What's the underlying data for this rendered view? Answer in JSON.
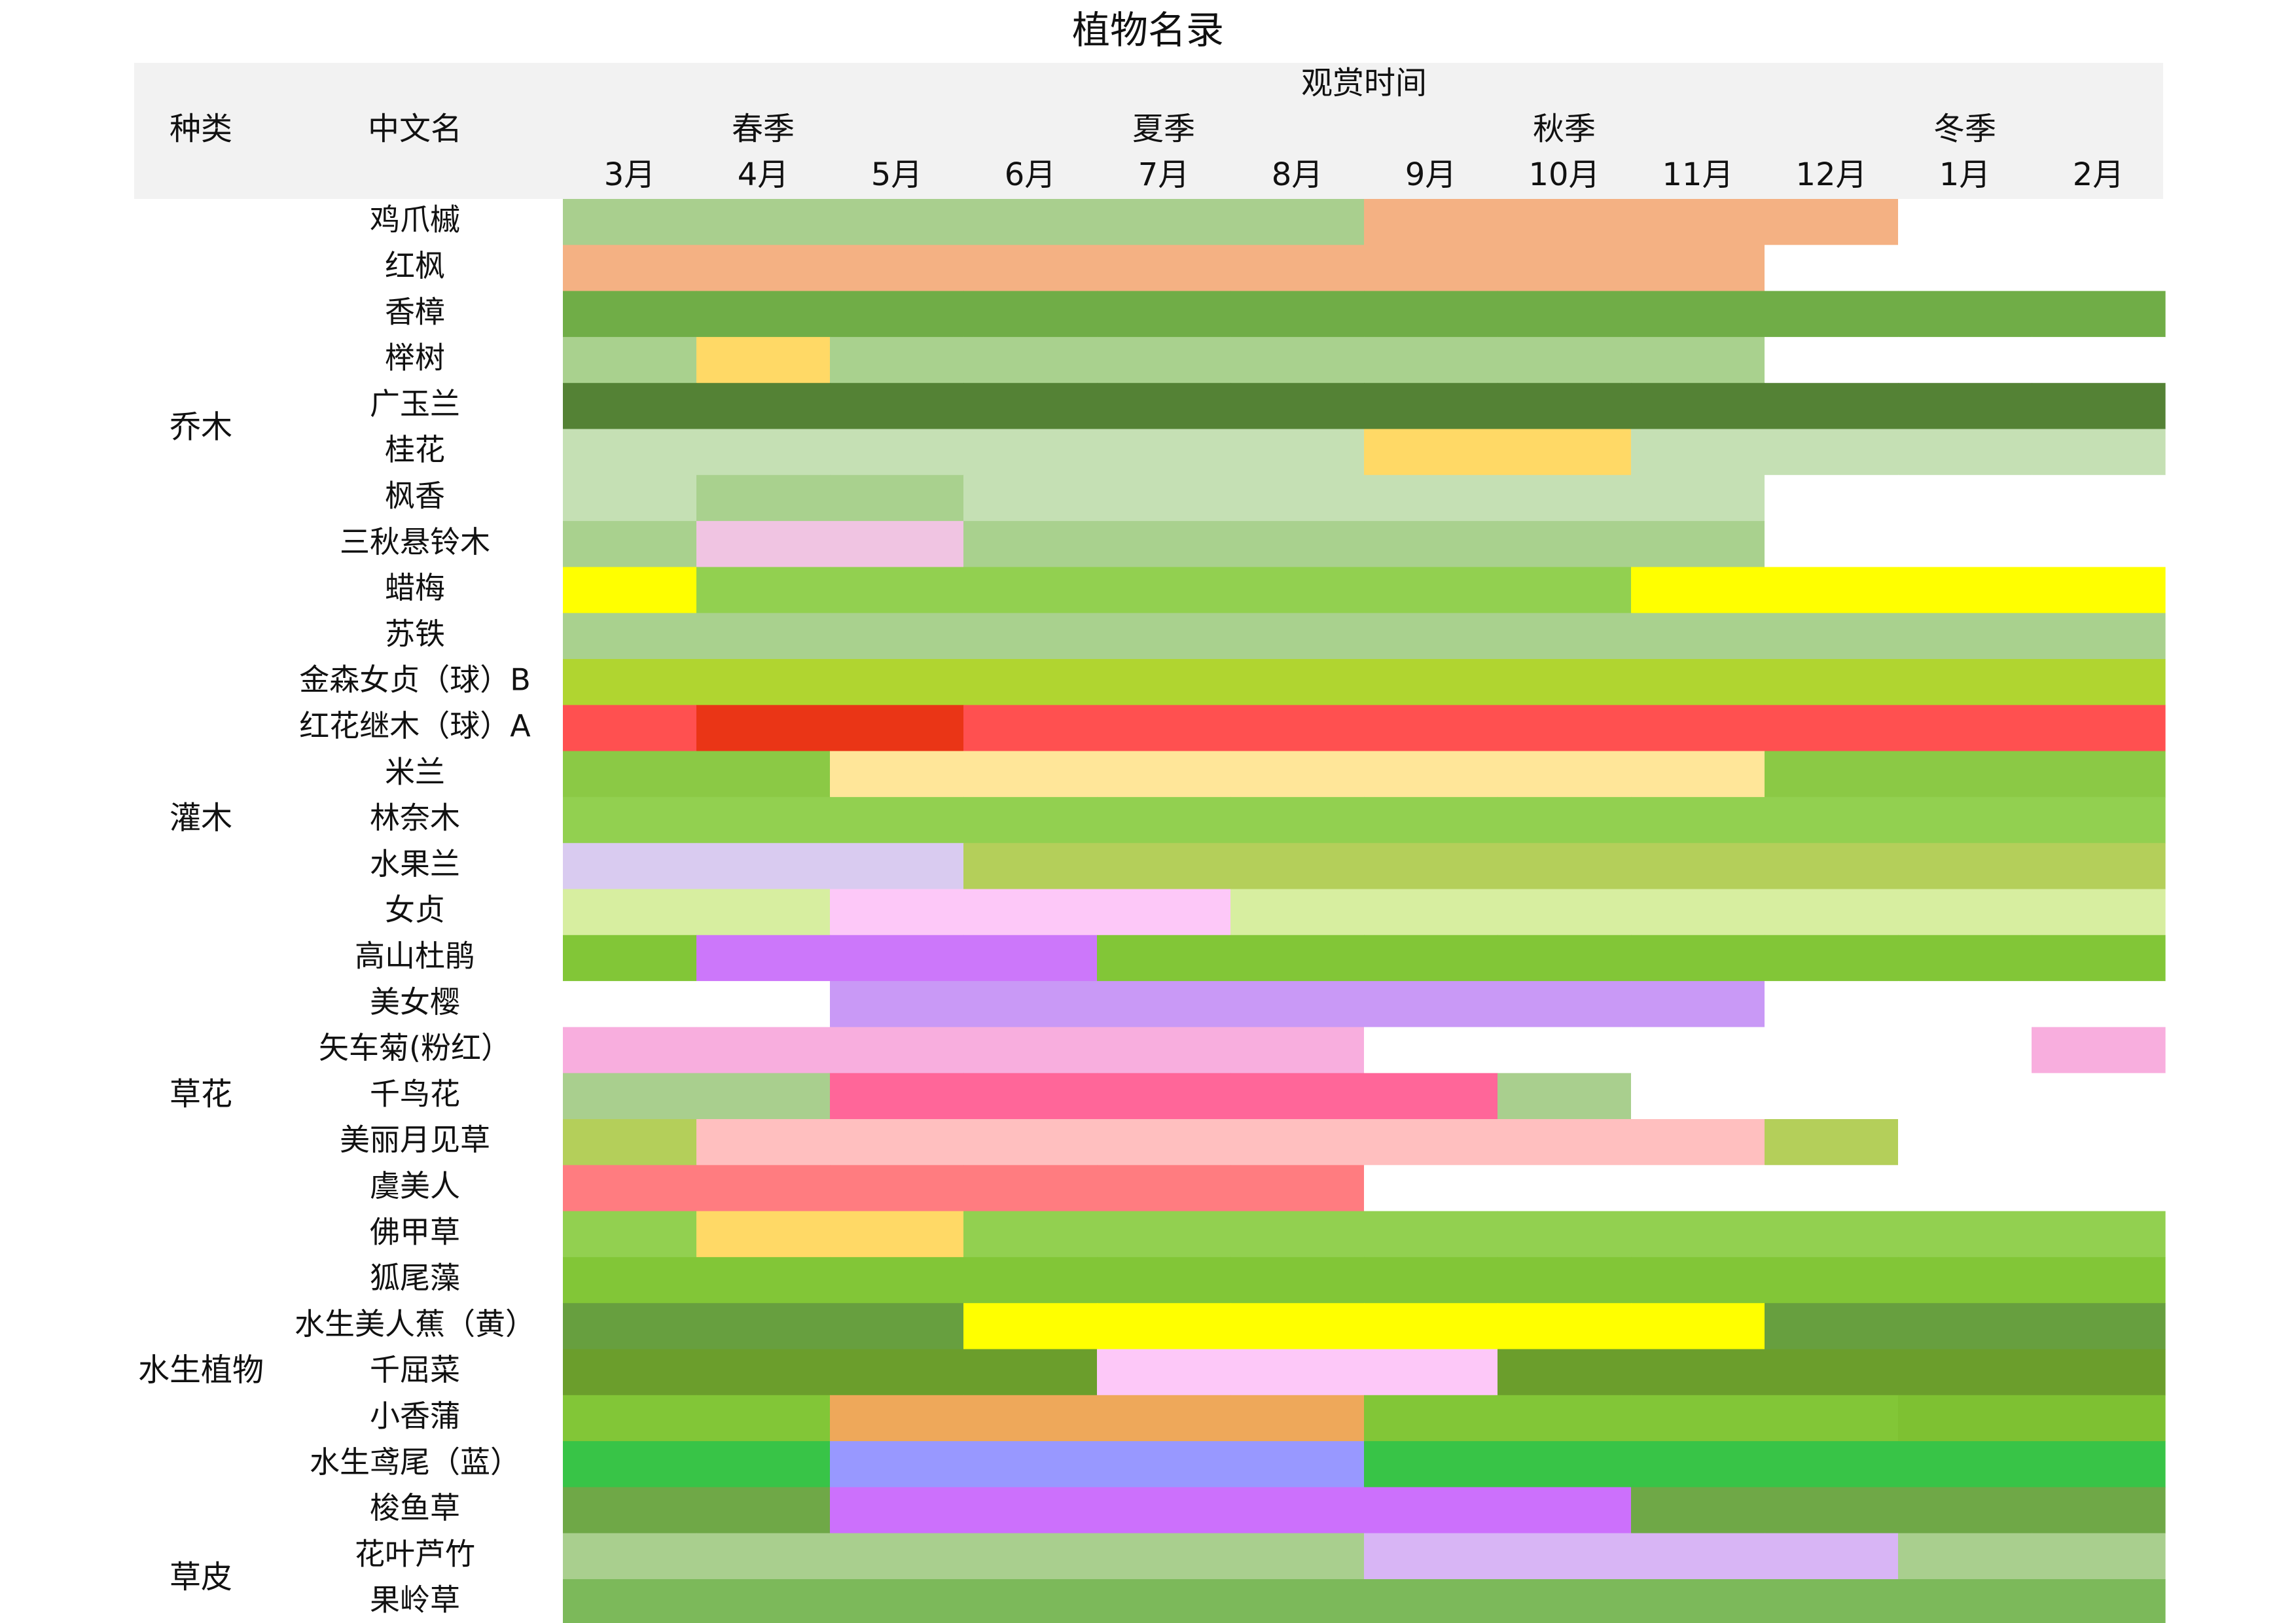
{
  "chart_data": {
    "type": "heatmap",
    "title": "植物名录",
    "header": {
      "category_label": "种类",
      "name_label": "中文名",
      "time_label": "观赏时间",
      "seasons": [
        {
          "label": "春季",
          "months": [
            "3月",
            "4月",
            "5月"
          ]
        },
        {
          "label": "夏季",
          "months": [
            "6月",
            "7月",
            "8月"
          ]
        },
        {
          "label": "秋季",
          "months": [
            "9月",
            "10月",
            "11月"
          ]
        },
        {
          "label": "冬季",
          "months": [
            "12月",
            "1月",
            "2月"
          ]
        }
      ]
    },
    "months": [
      "3月",
      "4月",
      "5月",
      "6月",
      "7月",
      "8月",
      "9月",
      "10月",
      "11月",
      "12月",
      "1月",
      "2月"
    ],
    "categories": [
      {
        "label": "乔木",
        "first_row": 0,
        "last_row": 9
      },
      {
        "label": "灌木",
        "first_row": 10,
        "last_row": 16
      },
      {
        "label": "草花",
        "first_row": 17,
        "last_row": 21
      },
      {
        "label": "水生植物",
        "first_row": 22,
        "last_row": 28
      },
      {
        "label": "草皮",
        "first_row": 29,
        "last_row": 30
      }
    ],
    "plants": [
      {
        "name": "鸡爪槭",
        "cells": [
          "#a9cf8e",
          "#a9cf8e",
          "#a9cf8e",
          "#a9cf8e",
          "#a9cf8e",
          "#a9cf8e",
          "#f4b183",
          "#f4b183",
          "#f4b183",
          "#f4b183",
          null,
          null
        ]
      },
      {
        "name": "红枫",
        "cells": [
          "#f4b183",
          "#f4b183",
          "#f4b183",
          "#f4b183",
          "#f4b183",
          "#f4b183",
          "#f4b183",
          "#f4b183",
          "#f4b183",
          null,
          null,
          null
        ]
      },
      {
        "name": "香樟",
        "cells": [
          "#70ad47",
          "#70ad47",
          "#70ad47",
          "#70ad47",
          "#70ad47",
          "#70ad47",
          "#70ad47",
          "#70ad47",
          "#70ad47",
          "#70ad47",
          "#70ad47",
          "#70ad47"
        ]
      },
      {
        "name": "榉树",
        "cells": [
          "#a9d18e",
          "#ffd966",
          "#a9d18e",
          "#a9d18e",
          "#a9d18e",
          "#a9d18e",
          "#a9d18e",
          "#a9d18e",
          "#a9d18e",
          null,
          null,
          null
        ]
      },
      {
        "name": "广玉兰",
        "cells": [
          "#548235",
          "#548235",
          "#548235",
          "#548235",
          "#548235",
          "#548235",
          "#548235",
          "#548235",
          "#548235",
          "#548235",
          "#548235",
          "#548235"
        ]
      },
      {
        "name": "桂花",
        "cells": [
          "#c5e0b4",
          "#c5e0b4",
          "#c5e0b4",
          "#c5e0b4",
          "#c5e0b4",
          "#c5e0b4",
          "#ffd966",
          "#ffd966",
          "#c5e0b4",
          "#c5e0b4",
          "#c5e0b4",
          "#c5e0b4"
        ]
      },
      {
        "name": "枫香",
        "cells": [
          "#c5e0b4",
          "#a9d18e",
          "#a9d18e",
          "#c5e0b4",
          "#c5e0b4",
          "#c5e0b4",
          "#c5e0b4",
          "#c5e0b4",
          "#c5e0b4",
          null,
          null,
          null
        ]
      },
      {
        "name": "三秋悬铃木",
        "cells": [
          "#a9d18e",
          "#f0c4e2",
          "#f0c4e2",
          "#a9d18e",
          "#a9d18e",
          "#a9d18e",
          "#a9d18e",
          "#a9d18e",
          "#a9d18e",
          null,
          null,
          null
        ]
      },
      {
        "name": "蜡梅",
        "cells": [
          "#ffff00",
          "#92d050",
          "#92d050",
          "#92d050",
          "#92d050",
          "#92d050",
          "#92d050",
          "#92d050",
          "#ffff00",
          "#ffff00",
          "#ffff00",
          "#ffff00"
        ]
      },
      {
        "name": "苏铁",
        "cells": [
          "#a9d18e",
          "#a9d18e",
          "#a9d18e",
          "#a9d18e",
          "#a9d18e",
          "#a9d18e",
          "#a9d18e",
          "#a9d18e",
          "#a9d18e",
          "#a9d18e",
          "#a9d18e",
          "#a9d18e"
        ]
      },
      {
        "name": "金森女贞（球）B",
        "cells": [
          "#b0d530",
          "#b0d530",
          "#b0d530",
          "#b0d530",
          "#b0d530",
          "#b0d530",
          "#b0d530",
          "#b0d530",
          "#b0d530",
          "#b0d530",
          "#b0d530",
          "#b0d530"
        ]
      },
      {
        "name": "红花继木（球）A",
        "cells": [
          "#ff5050",
          "#ea3516",
          "#ea3516",
          "#ff5050",
          "#ff5050",
          "#ff5050",
          "#ff5050",
          "#ff5050",
          "#ff5050",
          "#ff5050",
          "#ff5050",
          "#ff5050"
        ]
      },
      {
        "name": "米兰",
        "cells": [
          "#8bc945",
          "#8bc945",
          "#ffe699",
          "#ffe699",
          "#ffe699",
          "#ffe699",
          "#ffe699",
          "#ffe699",
          "#ffe699",
          "#8bc945",
          "#8bc945",
          "#8bc945"
        ]
      },
      {
        "name": "林奈木",
        "cells": [
          "#92d050",
          "#92d050",
          "#92d050",
          "#92d050",
          "#92d050",
          "#92d050",
          "#92d050",
          "#92d050",
          "#92d050",
          "#92d050",
          "#92d050",
          "#92d050"
        ]
      },
      {
        "name": "水果兰",
        "cells": [
          "#d9cbf0",
          "#d9cbf0",
          "#d9cbf0",
          "#b4cf5a",
          "#b4cf5a",
          "#b4cf5a",
          "#b4cf5a",
          "#b4cf5a",
          "#b4cf5a",
          "#b4cf5a",
          "#b4cf5a",
          "#b4cf5a"
        ]
      },
      {
        "name": "女贞",
        "cells": [
          "#d7eea0",
          "#d7eea0",
          "#fdc8f8",
          "#fdc8f8",
          "#fdc8f8",
          "#d7eea0",
          "#d7eea0",
          "#d7eea0",
          "#d7eea0",
          "#d7eea0",
          "#d7eea0",
          "#d7eea0"
        ]
      },
      {
        "name": "高山杜鹃",
        "cells": [
          "#82c637",
          "#cc77fa",
          "#cc77fa",
          "#cc77fa",
          "#82c637",
          "#82c637",
          "#82c637",
          "#82c637",
          "#82c637",
          "#82c637",
          "#82c637",
          "#82c637"
        ]
      },
      {
        "name": "美女樱",
        "cells": [
          null,
          null,
          "#c999f6",
          "#c999f6",
          "#c999f6",
          "#c999f6",
          "#c999f6",
          "#c999f6",
          "#c999f6",
          null,
          null,
          null
        ]
      },
      {
        "name": "矢车菊(粉红）",
        "cells": [
          "#f8aede",
          "#f8aede",
          "#f8aede",
          "#f8aede",
          "#f8aede",
          "#f8aede",
          null,
          null,
          null,
          null,
          null,
          "#f8aede"
        ]
      },
      {
        "name": "千鸟花",
        "cells": [
          "#a9cf8e",
          "#a9cf8e",
          "#ff6699",
          "#ff6699",
          "#ff6699",
          "#ff6699",
          "#ff6699",
          "#a9cf8e",
          null,
          null,
          null,
          null
        ]
      },
      {
        "name": "美丽月见草",
        "cells": [
          "#b4cf5a",
          "#ffbfbf",
          "#ffbfbf",
          "#ffbfbf",
          "#ffbfbf",
          "#ffbfbf",
          "#ffbfbf",
          "#ffbfbf",
          "#ffbfbf",
          "#b4cf5a",
          null,
          null
        ]
      },
      {
        "name": "虞美人",
        "cells": [
          "#ff7c80",
          "#ff7c80",
          "#ff7c80",
          "#ff7c80",
          "#ff7c80",
          "#ff7c80",
          null,
          null,
          null,
          null,
          null,
          null
        ]
      },
      {
        "name": "佛甲草",
        "cells": [
          "#92d050",
          "#ffd966",
          "#ffd966",
          "#92d050",
          "#92d050",
          "#92d050",
          "#92d050",
          "#92d050",
          "#92d050",
          "#92d050",
          "#92d050",
          "#92d050"
        ]
      },
      {
        "name": "狐尾藻",
        "cells": [
          "#82c637",
          "#82c637",
          "#82c637",
          "#82c637",
          "#82c637",
          "#82c637",
          "#82c637",
          "#82c637",
          "#82c637",
          "#82c637",
          "#82c637",
          "#82c637"
        ]
      },
      {
        "name": "水生美人蕉（黄）",
        "cells": [
          "#679f3f",
          "#679f3f",
          "#679f3f",
          "#ffff00",
          "#ffff00",
          "#ffff00",
          "#ffff00",
          "#ffff00",
          "#ffff00",
          "#679f3f",
          "#679f3f",
          "#679f3f"
        ]
      },
      {
        "name": "千屈菜",
        "cells": [
          "#6b9e2c",
          "#6b9e2c",
          "#6b9e2c",
          "#6b9e2c",
          "#fdc8f8",
          "#fdc8f8",
          "#fdc8f8",
          "#6b9e2c",
          "#6b9e2c",
          "#6b9e2c",
          "#6b9e2c",
          "#6b9e2c"
        ]
      },
      {
        "name": "小香蒲",
        "cells": [
          "#82c637",
          "#82c637",
          "#eea85a",
          "#eea85a",
          "#eea85a",
          "#eea85a",
          "#82c637",
          "#82c637",
          "#82c637",
          "#82c637",
          "#7ec132",
          "#7ec132"
        ]
      },
      {
        "name": "水生鸢尾（蓝）",
        "cells": [
          "#38c447",
          "#38c447",
          "#9898ff",
          "#9898ff",
          "#9898ff",
          "#9898ff",
          "#38c447",
          "#38c447",
          "#38c447",
          "#38c447",
          "#38c447",
          "#38c447"
        ]
      },
      {
        "name": "梭鱼草",
        "cells": [
          "#6fa847",
          "#6fa847",
          "#cc70fc",
          "#cc70fc",
          "#cc70fc",
          "#cc70fc",
          "#cc70fc",
          "#cc70fc",
          "#6fa847",
          "#6fa847",
          "#6fa847",
          "#6fa847"
        ]
      },
      {
        "name": "花叶芦竹",
        "cells": [
          "#a9cf8e",
          "#a9cf8e",
          "#a9cf8e",
          "#a9cf8e",
          "#a9cf8e",
          "#a9cf8e",
          "#d8b5f5",
          "#d8b5f5",
          "#d8b5f5",
          "#d8b5f5",
          "#a9cf8e",
          "#a9cf8e"
        ]
      },
      {
        "name": "果岭草",
        "cells": [
          "#7cb95a",
          "#7cb95a",
          "#7cb95a",
          "#7cb95a",
          "#7cb95a",
          "#7cb95a",
          "#7cb95a",
          "#7cb95a",
          "#7cb95a",
          "#7cb95a",
          "#7cb95a",
          "#7cb95a"
        ]
      }
    ],
    "colors": {
      "header_bg": "#f2f2f2",
      "empty_cell": "#ffffff"
    }
  }
}
